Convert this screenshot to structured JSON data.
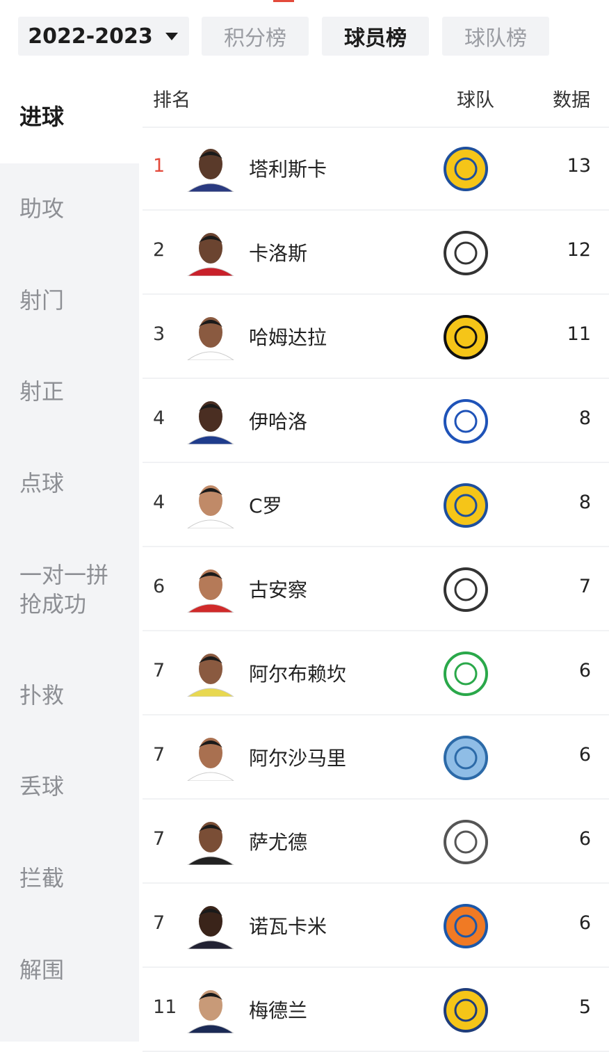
{
  "tabs": {
    "season": "2022-2023",
    "items": [
      "积分榜",
      "球员榜",
      "球队榜"
    ],
    "active": 1
  },
  "sidebar": {
    "items": [
      "进球",
      "助攻",
      "射门",
      "射正",
      "点球",
      "一对一拼抢成功",
      "扑救",
      "丢球",
      "拦截",
      "解围"
    ],
    "active": 0
  },
  "table": {
    "headers": [
      "排名",
      "球队",
      "数据"
    ],
    "rows": [
      {
        "rank": 1,
        "name": "塔利斯卡",
        "value": 13
      },
      {
        "rank": 2,
        "name": "卡洛斯",
        "value": 12
      },
      {
        "rank": 3,
        "name": "哈姆达拉",
        "value": 11
      },
      {
        "rank": 4,
        "name": "伊哈洛",
        "value": 8
      },
      {
        "rank": 4,
        "name": "C罗",
        "value": 8
      },
      {
        "rank": 6,
        "name": "古安察",
        "value": 7
      },
      {
        "rank": 7,
        "name": "阿尔布赖坎",
        "value": 6
      },
      {
        "rank": 7,
        "name": "阿尔沙马里",
        "value": 6
      },
      {
        "rank": 7,
        "name": "萨尤德",
        "value": 6
      },
      {
        "rank": 7,
        "name": "诺瓦卡米",
        "value": 6
      },
      {
        "rank": 11,
        "name": "梅德兰",
        "value": 5
      }
    ]
  }
}
